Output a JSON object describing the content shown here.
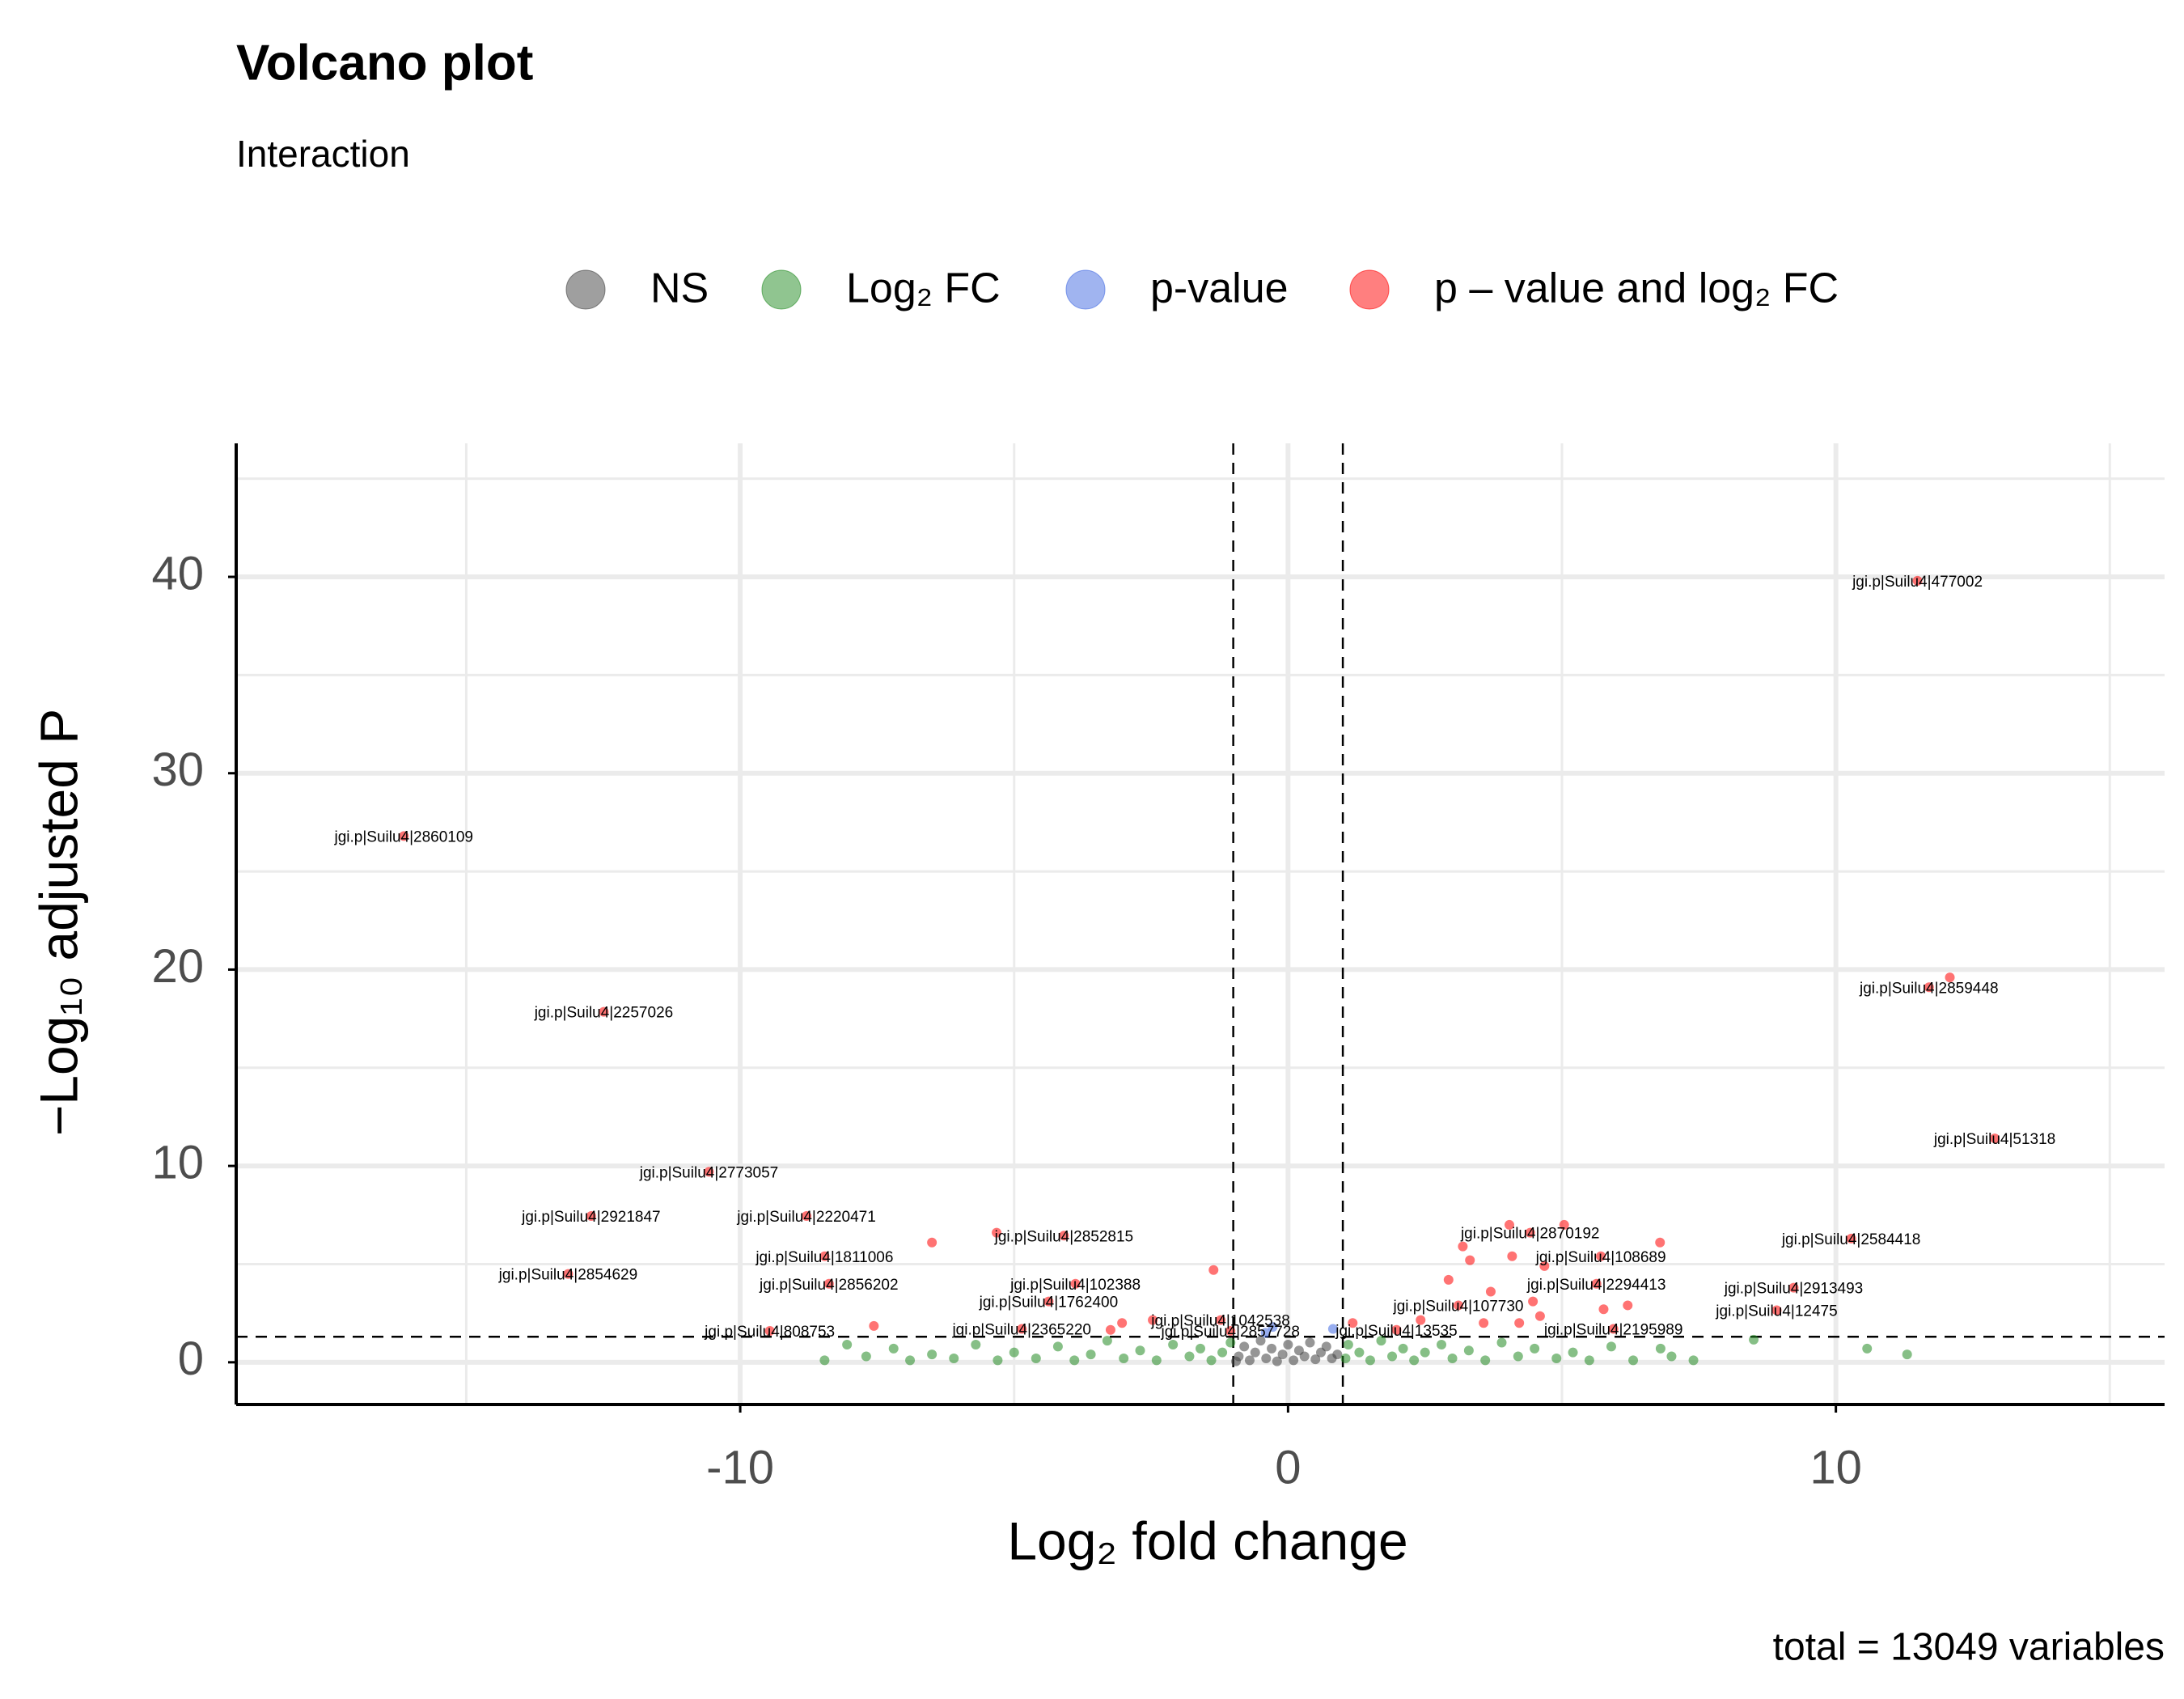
{
  "chart_data": {
    "type": "scatter",
    "title": "Volcano plot",
    "subtitle": "Interaction",
    "caption": "total = 13049 variables",
    "xlabel": "Log₂ fold change",
    "ylabel": "−Log₁₀ adjusted P",
    "xlim": [
      -19.2,
      16.0
    ],
    "ylim": [
      -2.15,
      46.8
    ],
    "xticks": [
      -10,
      0,
      10
    ],
    "yticks": [
      0,
      10,
      20,
      30,
      40
    ],
    "xminor": [
      -15,
      -5,
      5,
      15
    ],
    "yminor": [
      5,
      15,
      25,
      35,
      45
    ],
    "vlines": [
      -1,
      1
    ],
    "hline": 1.3,
    "grid": true,
    "legend": "top",
    "series": [
      {
        "name": "NS",
        "color": "#404040",
        "x": [
          -0.9,
          -0.8,
          -0.7,
          -0.6,
          -0.5,
          -0.4,
          -0.3,
          -0.2,
          -0.1,
          0,
          0.1,
          0.2,
          0.3,
          0.4,
          0.5,
          0.6,
          0.7,
          0.8,
          0.9,
          -0.95
        ],
        "values": [
          0.3,
          0.8,
          0.1,
          0.5,
          1.1,
          0.2,
          0.7,
          0.05,
          0.4,
          0.9,
          0.1,
          0.6,
          0.3,
          1.0,
          0.15,
          0.5,
          0.8,
          0.2,
          0.4,
          0.05
        ]
      },
      {
        "name": "Log₂ FC",
        "color": "#228B22",
        "x": [
          -8.46,
          -8.05,
          -7.7,
          -7.2,
          -6.9,
          -6.5,
          -6.1,
          -5.7,
          -5.3,
          -5.0,
          -4.6,
          -4.2,
          -3.9,
          -3.6,
          -3.3,
          -3.0,
          -2.7,
          -2.4,
          -2.1,
          -1.8,
          -1.6,
          -1.4,
          -1.2,
          -1.05,
          1.05,
          1.1,
          1.3,
          1.5,
          1.7,
          1.9,
          2.1,
          2.3,
          2.5,
          2.8,
          3.0,
          3.3,
          3.6,
          3.9,
          4.2,
          4.5,
          4.9,
          5.2,
          5.5,
          5.9,
          6.3,
          6.8,
          7.0,
          7.4,
          8.5,
          10.57,
          11.3
        ],
        "values": [
          0.1,
          0.9,
          0.3,
          0.7,
          0.1,
          0.4,
          0.2,
          0.9,
          0.1,
          0.5,
          0.2,
          0.8,
          0.1,
          0.4,
          1.1,
          0.2,
          0.6,
          0.1,
          0.9,
          0.3,
          0.7,
          0.1,
          0.5,
          1.0,
          0.2,
          0.9,
          0.5,
          0.1,
          1.1,
          0.3,
          0.7,
          0.1,
          0.5,
          0.9,
          0.2,
          0.6,
          0.1,
          1.0,
          0.3,
          0.7,
          0.2,
          0.5,
          0.1,
          0.8,
          0.1,
          0.7,
          0.3,
          0.1,
          1.15,
          0.7,
          0.4
        ]
      },
      {
        "name": "p-value",
        "color": "#4169E1",
        "x": [
          -0.28,
          0.82,
          -0.41
        ],
        "values": [
          1.8,
          1.7,
          1.5
        ]
      },
      {
        "name": "p – value and log₂ FC",
        "color": "#FF0000",
        "x": [
          11.49,
          -16.14,
          11.7,
          -12.49,
          12.9,
          -10.57,
          -12.72,
          -8.79,
          -4.09,
          4.42,
          10.28,
          -8.46,
          5.71,
          -13.14,
          -8.38,
          -3.88,
          5.63,
          9.23,
          -4.37,
          3.11,
          8.92,
          -1.23,
          -9.46,
          -4.86,
          -1.05,
          1.98,
          5.94,
          12.08,
          -5.32,
          -6.5,
          -1.36,
          -7.56,
          4.04,
          5.04,
          3.19,
          6.79,
          3.32,
          4.09,
          4.68,
          2.93,
          3.7,
          4.47,
          5.76,
          6.2,
          3.57,
          2.42,
          1.18,
          -3.03,
          -2.47,
          -3.24,
          4.22,
          4.6
        ],
        "values": [
          39.8,
          26.8,
          19.1,
          17.85,
          11.4,
          9.7,
          7.45,
          7.45,
          6.45,
          6.6,
          6.3,
          5.4,
          5.4,
          4.5,
          4.0,
          4.0,
          4.0,
          3.8,
          3.1,
          2.9,
          2.65,
          2.15,
          1.6,
          1.7,
          1.6,
          1.65,
          1.7,
          19.6,
          6.6,
          6.1,
          4.7,
          1.85,
          7.0,
          7.0,
          5.9,
          6.1,
          5.2,
          5.4,
          4.9,
          4.2,
          3.6,
          3.1,
          2.7,
          2.9,
          2.0,
          2.15,
          2.0,
          2.0,
          2.15,
          1.65,
          2.0,
          2.35
        ],
        "labels": [
          "jgi.p|Suilu4|477002",
          "jgi.p|Suilu4|2860109",
          "jgi.p|Suilu4|2859448",
          "jgi.p|Suilu4|2257026",
          "jgi.p|Suilu4|51318",
          "jgi.p|Suilu4|2773057",
          "jgi.p|Suilu4|2921847",
          "jgi.p|Suilu4|2220471",
          "jgi.p|Suilu4|2852815",
          "jgi.p|Suilu4|2870192",
          "jgi.p|Suilu4|2584418",
          "jgi.p|Suilu4|1811006",
          "jgi.p|Suilu4|108689",
          "jgi.p|Suilu4|2854629",
          "jgi.p|Suilu4|2856202",
          "jgi.p|Suilu4|102388",
          "jgi.p|Suilu4|2294413",
          "jgi.p|Suilu4|2913493",
          "jgi.p|Suilu4|1762400",
          "jgi.p|Suilu4|107730",
          "jgi.p|Suilu4|12475",
          "jgi.p|Suilu4|1042538",
          "jgi.p|Suilu4|808753",
          "jgi.p|Suilu4|2365220",
          "jgi.p|Suilu4|2857728",
          "jgi.p|Suilu4|13535",
          "jgi.p|Suilu4|2195989",
          null,
          null,
          null,
          null,
          null,
          null,
          null,
          null,
          null,
          null,
          null,
          null,
          null,
          null,
          null,
          null,
          null,
          null,
          null,
          null,
          null,
          null,
          null,
          null,
          null
        ]
      }
    ]
  }
}
